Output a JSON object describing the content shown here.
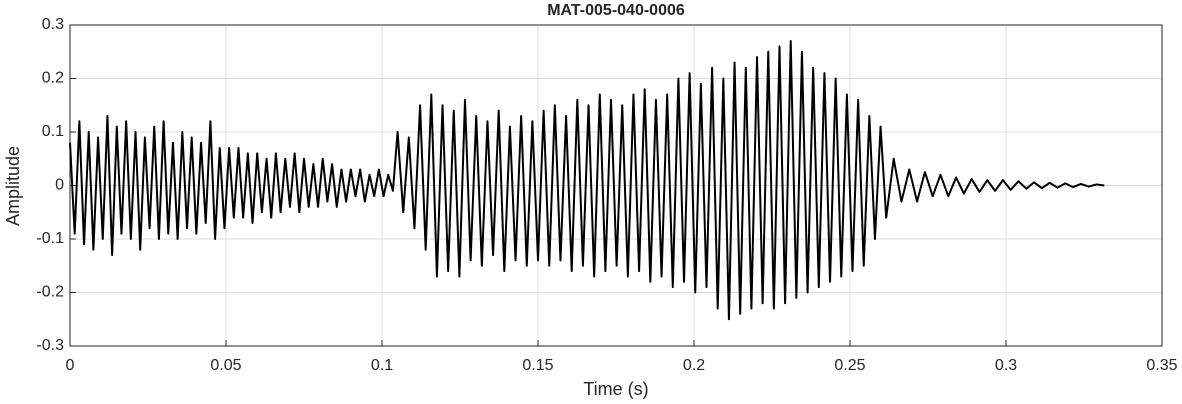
{
  "chart_data": {
    "type": "line",
    "title": "MAT-005-040-0006",
    "x_label": "Time (s)",
    "y_label": "Amplitude",
    "color": "#000000",
    "grid": true,
    "xlim": [
      0,
      0.35
    ],
    "xticks": [
      0,
      0.05,
      0.1,
      0.15,
      0.2,
      0.25,
      0.3,
      0.35
    ],
    "ylim": [
      -0.3,
      0.3
    ],
    "yticks": [
      -0.3,
      -0.2,
      -0.1,
      0,
      0.1,
      0.2,
      0.3
    ],
    "x": [
      0,
      0.0015,
      0.003,
      0.0045,
      0.006,
      0.0075,
      0.009,
      0.0105,
      0.012,
      0.0135,
      0.015,
      0.0165,
      0.018,
      0.0195,
      0.021,
      0.0225,
      0.024,
      0.0255,
      0.027,
      0.0285,
      0.03,
      0.0315,
      0.033,
      0.0345,
      0.036,
      0.0375,
      0.039,
      0.0405,
      0.042,
      0.0435,
      0.045,
      0.0465,
      0.048,
      0.0495,
      0.051,
      0.0525,
      0.054,
      0.0555,
      0.057,
      0.0585,
      0.06,
      0.0615,
      0.063,
      0.0645,
      0.066,
      0.0675,
      0.069,
      0.0705,
      0.072,
      0.0735,
      0.075,
      0.0765,
      0.078,
      0.0795,
      0.081,
      0.0825,
      0.084,
      0.0855,
      0.087,
      0.0885,
      0.09,
      0.0915,
      0.093,
      0.0945,
      0.096,
      0.0975,
      0.099,
      0.1005,
      0.102,
      0.1035,
      0.105,
      0.1068,
      0.1086,
      0.1104,
      0.1122,
      0.114,
      0.1158,
      0.1176,
      0.1194,
      0.1212,
      0.123,
      0.1248,
      0.1266,
      0.1284,
      0.1302,
      0.132,
      0.1338,
      0.1356,
      0.1374,
      0.1392,
      0.141,
      0.1428,
      0.1446,
      0.1464,
      0.1482,
      0.15,
      0.1518,
      0.1536,
      0.1554,
      0.1572,
      0.159,
      0.1608,
      0.1626,
      0.1644,
      0.1662,
      0.168,
      0.1698,
      0.1716,
      0.1734,
      0.1752,
      0.177,
      0.1788,
      0.1806,
      0.1824,
      0.1842,
      0.186,
      0.1878,
      0.1896,
      0.1914,
      0.1932,
      0.195,
      0.1968,
      0.1986,
      0.2004,
      0.2022,
      0.204,
      0.2058,
      0.2076,
      0.2094,
      0.2112,
      0.213,
      0.2148,
      0.2166,
      0.2184,
      0.2202,
      0.222,
      0.2238,
      0.2256,
      0.2274,
      0.2292,
      0.231,
      0.2328,
      0.2346,
      0.2364,
      0.2382,
      0.24,
      0.2418,
      0.2436,
      0.2454,
      0.2472,
      0.249,
      0.2508,
      0.2526,
      0.2544,
      0.2562,
      0.258,
      0.2598,
      0.2616,
      0.264,
      0.2665,
      0.269,
      0.2715,
      0.274,
      0.2765,
      0.279,
      0.2815,
      0.284,
      0.2865,
      0.289,
      0.2915,
      0.294,
      0.2965,
      0.299,
      0.3015,
      0.304,
      0.3065,
      0.309,
      0.3115,
      0.314,
      0.3165,
      0.319,
      0.3215,
      0.324,
      0.3265,
      0.329,
      0.3315
    ],
    "values": [
      0.08,
      -0.09,
      0.12,
      -0.11,
      0.1,
      -0.12,
      0.09,
      -0.1,
      0.13,
      -0.13,
      0.11,
      -0.09,
      0.12,
      -0.1,
      0.1,
      -0.12,
      0.09,
      -0.08,
      0.11,
      -0.1,
      0.12,
      -0.09,
      0.08,
      -0.1,
      0.1,
      -0.08,
      0.09,
      -0.09,
      0.08,
      -0.07,
      0.12,
      -0.1,
      0.07,
      -0.08,
      0.07,
      -0.06,
      0.07,
      -0.06,
      0.06,
      -0.07,
      0.06,
      -0.05,
      0.05,
      -0.06,
      0.06,
      -0.05,
      0.05,
      -0.04,
      0.06,
      -0.05,
      0.05,
      -0.04,
      0.04,
      -0.04,
      0.05,
      -0.03,
      0.04,
      -0.04,
      0.03,
      -0.03,
      0.03,
      -0.02,
      0.03,
      -0.03,
      0.02,
      -0.02,
      0.03,
      -0.02,
      0.02,
      -0.01,
      0.1,
      -0.05,
      0.09,
      -0.08,
      0.15,
      -0.12,
      0.17,
      -0.17,
      0.15,
      -0.16,
      0.14,
      -0.17,
      0.16,
      -0.14,
      0.13,
      -0.15,
      0.12,
      -0.13,
      0.14,
      -0.16,
      0.11,
      -0.14,
      0.13,
      -0.15,
      0.12,
      -0.14,
      0.14,
      -0.15,
      0.15,
      -0.14,
      0.13,
      -0.16,
      0.16,
      -0.15,
      0.15,
      -0.17,
      0.17,
      -0.16,
      0.16,
      -0.15,
      0.15,
      -0.17,
      0.17,
      -0.16,
      0.18,
      -0.18,
      0.16,
      -0.17,
      0.17,
      -0.19,
      0.2,
      -0.18,
      0.21,
      -0.2,
      0.19,
      -0.19,
      0.22,
      -0.23,
      0.2,
      -0.25,
      0.23,
      -0.24,
      0.22,
      -0.23,
      0.24,
      -0.22,
      0.25,
      -0.23,
      0.26,
      -0.22,
      0.27,
      -0.21,
      0.25,
      -0.2,
      0.22,
      -0.19,
      0.21,
      -0.18,
      0.2,
      -0.17,
      0.17,
      -0.16,
      0.16,
      -0.15,
      0.13,
      -0.1,
      0.11,
      -0.06,
      0.05,
      -0.03,
      0.03,
      -0.03,
      0.025,
      -0.02,
      0.02,
      -0.02,
      0.015,
      -0.015,
      0.012,
      -0.012,
      0.01,
      -0.01,
      0.01,
      -0.008,
      0.008,
      -0.006,
      0.006,
      -0.005,
      0.005,
      -0.004,
      0.004,
      -0.003,
      0.003,
      -0.002,
      0.002,
      0
    ]
  }
}
